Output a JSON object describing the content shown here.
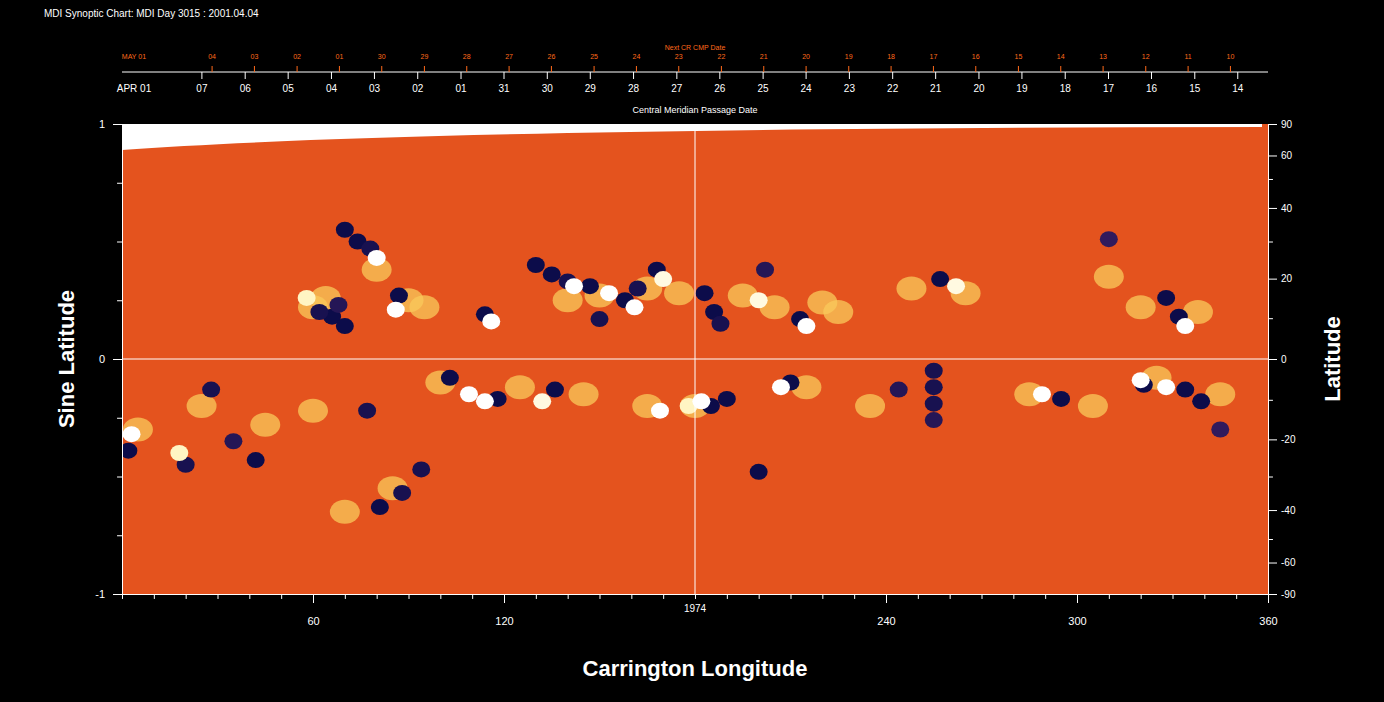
{
  "chart_data": {
    "type": "heatmap",
    "title": "MDI Synoptic Chart: MDI Day 3015 : 2001.04.04",
    "x_label": "Carrington Longitude",
    "y_label": "Sine Latitude",
    "y2_label": "Latitude",
    "xlim": [
      0,
      360
    ],
    "xticks": [
      {
        "value": 0,
        "label": null
      },
      {
        "value": 10,
        "label": null
      },
      {
        "value": 20,
        "label": null
      },
      {
        "value": 30,
        "label": null
      },
      {
        "value": 40,
        "label": null
      },
      {
        "value": 50,
        "label": null
      },
      60,
      {
        "value": 70,
        "label": null
      },
      {
        "value": 80,
        "label": null
      },
      {
        "value": 90,
        "label": null
      },
      {
        "value": 100,
        "label": null
      },
      {
        "value": 110,
        "label": null
      },
      120,
      {
        "value": 130,
        "label": null
      },
      {
        "value": 140,
        "label": null
      },
      {
        "value": 150,
        "label": null
      },
      {
        "value": 160,
        "label": null
      },
      {
        "value": 170,
        "label": null
      },
      {
        "value": 180,
        "label": null
      },
      {
        "value": 190,
        "label": null
      },
      {
        "value": 200,
        "label": null
      },
      {
        "value": 210,
        "label": null
      },
      {
        "value": 220,
        "label": null
      },
      {
        "value": 230,
        "label": null
      },
      240,
      {
        "value": 250,
        "label": null
      },
      {
        "value": 260,
        "label": null
      },
      {
        "value": 270,
        "label": null
      },
      {
        "value": 280,
        "label": null
      },
      {
        "value": 290,
        "label": null
      },
      300,
      {
        "value": 310,
        "label": null
      },
      {
        "value": 320,
        "label": null
      },
      {
        "value": 330,
        "label": null
      },
      {
        "value": 340,
        "label": null
      },
      {
        "value": 350,
        "label": null
      },
      360
    ],
    "ylim": [
      -1,
      1
    ],
    "yticks": [
      -1,
      {
        "value": -0.75,
        "label": null
      },
      {
        "value": -0.5,
        "label": null
      },
      {
        "value": -0.25,
        "label": null
      },
      0,
      {
        "value": 0.25,
        "label": null
      },
      {
        "value": 0.5,
        "label": null
      },
      {
        "value": 0.75,
        "label": null
      },
      1
    ],
    "y2lim": [
      -90,
      90
    ],
    "y2ticks": [
      -90,
      -60,
      {
        "value": -50,
        "label": null
      },
      -40,
      {
        "value": -30,
        "label": null
      },
      -20,
      {
        "value": -10,
        "label": null
      },
      0,
      {
        "value": 10,
        "label": null
      },
      20,
      {
        "value": 30,
        "label": null
      },
      40,
      {
        "value": 50,
        "label": null
      },
      60,
      90
    ],
    "reference_lines": {
      "x": 180,
      "y": 0
    },
    "rotation_label": {
      "text": "1974",
      "x": 180
    },
    "top_axes": [
      {
        "title": "Central Meridian Passage Date",
        "month": "APR 01",
        "color": "#ffffff",
        "ticks": [
          {
            "value": 25.1,
            "label": "07"
          },
          {
            "value": 38.7,
            "label": "06"
          },
          {
            "value": 52.2,
            "label": "05"
          },
          {
            "value": 65.8,
            "label": "04"
          },
          {
            "value": 79.3,
            "label": "03"
          },
          {
            "value": 92.9,
            "label": "02"
          },
          {
            "value": 106.5,
            "label": "01"
          },
          {
            "value": 120.0,
            "label": "31"
          },
          {
            "value": 133.6,
            "label": "30"
          },
          {
            "value": 147.1,
            "label": "29"
          },
          {
            "value": 160.7,
            "label": "28"
          },
          {
            "value": 174.3,
            "label": "27"
          },
          {
            "value": 187.8,
            "label": "26"
          },
          {
            "value": 201.4,
            "label": "25"
          },
          {
            "value": 214.9,
            "label": "24"
          },
          {
            "value": 228.5,
            "label": "23"
          },
          {
            "value": 242.1,
            "label": "22"
          },
          {
            "value": 255.6,
            "label": "21"
          },
          {
            "value": 269.2,
            "label": "20"
          },
          {
            "value": 282.7,
            "label": "19"
          },
          {
            "value": 296.3,
            "label": "18"
          },
          {
            "value": 309.9,
            "label": "17"
          },
          {
            "value": 323.4,
            "label": "16"
          },
          {
            "value": 337.0,
            "label": "15"
          },
          {
            "value": 350.5,
            "label": "14"
          }
        ]
      },
      {
        "title": "Next CR CMP Date",
        "month": "MAY 01",
        "color": "#ff6a1a",
        "ticks": [
          {
            "value": 28.3,
            "label": "04"
          },
          {
            "value": 41.6,
            "label": "03"
          },
          {
            "value": 55.0,
            "label": "02"
          },
          {
            "value": 68.3,
            "label": "01"
          },
          {
            "value": 81.6,
            "label": "30"
          },
          {
            "value": 95.0,
            "label": "29"
          },
          {
            "value": 108.3,
            "label": "28"
          },
          {
            "value": 121.6,
            "label": "27"
          },
          {
            "value": 134.9,
            "label": "26"
          },
          {
            "value": 148.3,
            "label": "25"
          },
          {
            "value": 161.6,
            "label": "24"
          },
          {
            "value": 174.9,
            "label": "23"
          },
          {
            "value": 188.3,
            "label": "22"
          },
          {
            "value": 201.6,
            "label": "21"
          },
          {
            "value": 214.9,
            "label": "20"
          },
          {
            "value": 228.3,
            "label": "19"
          },
          {
            "value": 241.6,
            "label": "18"
          },
          {
            "value": 254.9,
            "label": "17"
          },
          {
            "value": 268.2,
            "label": "16"
          },
          {
            "value": 281.6,
            "label": "15"
          },
          {
            "value": 294.9,
            "label": "14"
          },
          {
            "value": 308.2,
            "label": "13"
          },
          {
            "value": 321.6,
            "label": "12"
          },
          {
            "value": 334.9,
            "label": "11"
          },
          {
            "value": 348.2,
            "label": "10"
          }
        ]
      }
    ],
    "zlim": [
      -100,
      100
    ],
    "cells": [
      [
        60,
        0.22,
        40
      ],
      [
        64,
        0.26,
        40
      ],
      [
        90,
        0.25,
        40
      ],
      [
        95,
        0.22,
        40
      ],
      [
        140,
        0.25,
        40
      ],
      [
        150,
        0.27,
        40
      ],
      [
        165,
        0.3,
        40
      ],
      [
        175,
        0.28,
        40
      ],
      [
        195,
        0.27,
        40
      ],
      [
        205,
        0.22,
        40
      ],
      [
        220,
        0.24,
        40
      ],
      [
        225,
        0.2,
        40
      ],
      [
        248,
        0.3,
        40
      ],
      [
        265,
        0.28,
        40
      ],
      [
        320,
        0.22,
        40
      ],
      [
        338,
        0.2,
        40
      ],
      [
        310,
        0.35,
        40
      ],
      [
        80,
        0.38,
        40
      ],
      [
        5,
        -0.3,
        40
      ],
      [
        25,
        -0.2,
        40
      ],
      [
        45,
        -0.28,
        40
      ],
      [
        60,
        -0.22,
        40
      ],
      [
        70,
        -0.65,
        40
      ],
      [
        85,
        -0.55,
        40
      ],
      [
        100,
        -0.1,
        40
      ],
      [
        125,
        -0.12,
        40
      ],
      [
        145,
        -0.15,
        40
      ],
      [
        165,
        -0.2,
        40
      ],
      [
        180,
        -0.2,
        40
      ],
      [
        215,
        -0.12,
        40
      ],
      [
        235,
        -0.2,
        40
      ],
      [
        285,
        -0.15,
        40
      ],
      [
        305,
        -0.2,
        40
      ],
      [
        325,
        -0.08,
        40
      ],
      [
        345,
        -0.15,
        40
      ],
      [
        70,
        0.55,
        -100
      ],
      [
        74,
        0.5,
        -100
      ],
      [
        78,
        0.47,
        -90
      ],
      [
        66,
        0.18,
        -100
      ],
      [
        70,
        0.14,
        -100
      ],
      [
        62,
        0.2,
        -90
      ],
      [
        68,
        0.23,
        -80
      ],
      [
        87,
        0.27,
        -100
      ],
      [
        114,
        0.19,
        -100
      ],
      [
        130,
        0.4,
        -100
      ],
      [
        135,
        0.36,
        -100
      ],
      [
        140,
        0.33,
        -90
      ],
      [
        147,
        0.31,
        -100
      ],
      [
        158,
        0.25,
        -100
      ],
      [
        162,
        0.3,
        -90
      ],
      [
        168,
        0.38,
        -100
      ],
      [
        150,
        0.17,
        -90
      ],
      [
        183,
        0.28,
        -100
      ],
      [
        186,
        0.2,
        -100
      ],
      [
        188,
        0.15,
        -90
      ],
      [
        202,
        0.38,
        -80
      ],
      [
        213,
        0.17,
        -100
      ],
      [
        257,
        0.34,
        -100
      ],
      [
        328,
        0.26,
        -100
      ],
      [
        332,
        0.18,
        -100
      ],
      [
        310,
        0.51,
        -70
      ],
      [
        80,
        0.43,
        100
      ],
      [
        86,
        0.21,
        100
      ],
      [
        116,
        0.16,
        100
      ],
      [
        142,
        0.31,
        100
      ],
      [
        153,
        0.28,
        100
      ],
      [
        161,
        0.22,
        100
      ],
      [
        170,
        0.34,
        90
      ],
      [
        200,
        0.25,
        90
      ],
      [
        215,
        0.14,
        100
      ],
      [
        262,
        0.31,
        90
      ],
      [
        334,
        0.14,
        100
      ],
      [
        58,
        0.26,
        80
      ],
      [
        2,
        -0.39,
        -100
      ],
      [
        28,
        -0.13,
        -90
      ],
      [
        20,
        -0.45,
        -90
      ],
      [
        42,
        -0.43,
        -100
      ],
      [
        35,
        -0.35,
        -80
      ],
      [
        77,
        -0.22,
        -90
      ],
      [
        81,
        -0.63,
        -100
      ],
      [
        88,
        -0.57,
        -90
      ],
      [
        94,
        -0.47,
        -90
      ],
      [
        103,
        -0.08,
        -100
      ],
      [
        118,
        -0.17,
        -100
      ],
      [
        136,
        -0.13,
        -100
      ],
      [
        185,
        -0.2,
        -100
      ],
      [
        190,
        -0.17,
        -100
      ],
      [
        210,
        -0.1,
        -100
      ],
      [
        200,
        -0.48,
        -100
      ],
      [
        255,
        -0.05,
        -90
      ],
      [
        255,
        -0.12,
        -90
      ],
      [
        255,
        -0.19,
        -90
      ],
      [
        255,
        -0.26,
        -80
      ],
      [
        244,
        -0.13,
        -80
      ],
      [
        295,
        -0.17,
        -100
      ],
      [
        321,
        -0.11,
        -100
      ],
      [
        334,
        -0.13,
        -100
      ],
      [
        339,
        -0.18,
        -100
      ],
      [
        345,
        -0.3,
        -70
      ],
      [
        3,
        -0.32,
        100
      ],
      [
        18,
        -0.4,
        80
      ],
      [
        109,
        -0.15,
        100
      ],
      [
        114,
        -0.18,
        100
      ],
      [
        132,
        -0.18,
        90
      ],
      [
        169,
        -0.22,
        100
      ],
      [
        178,
        -0.2,
        80
      ],
      [
        182,
        -0.18,
        100
      ],
      [
        207,
        -0.12,
        100
      ],
      [
        289,
        -0.15,
        100
      ],
      [
        320,
        -0.09,
        100
      ],
      [
        328,
        -0.12,
        100
      ]
    ]
  }
}
